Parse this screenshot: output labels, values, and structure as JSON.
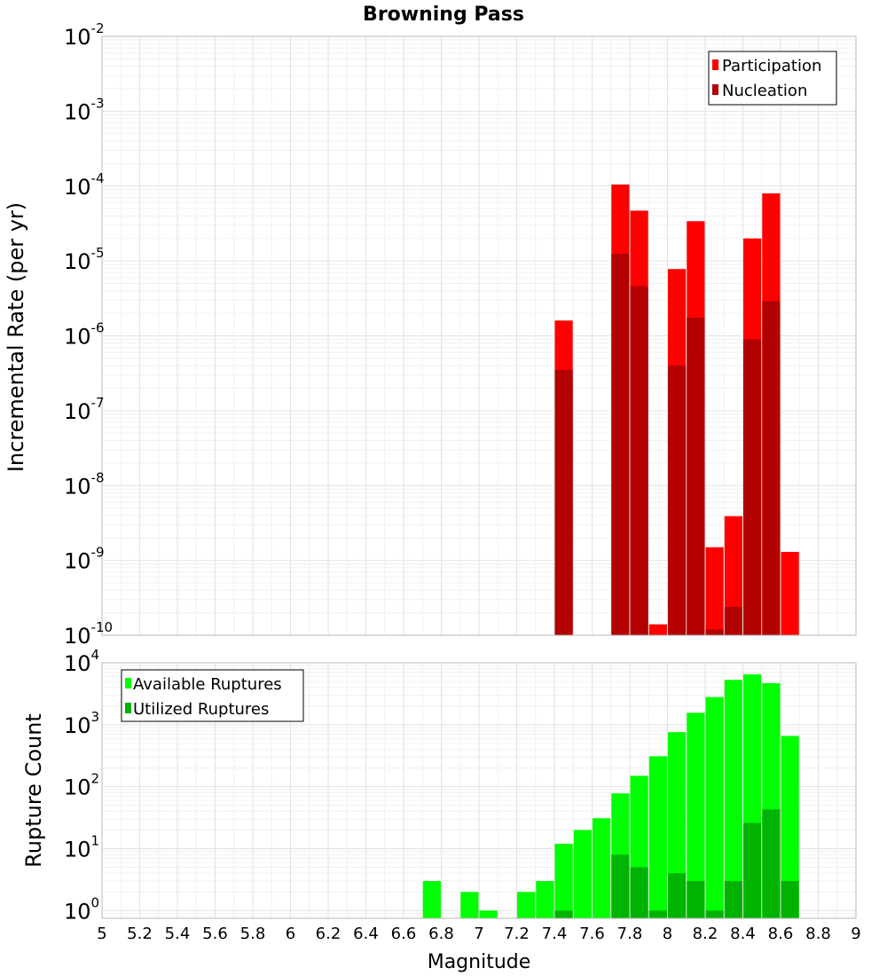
{
  "chart_data": [
    {
      "type": "bar",
      "title": "Browning Pass",
      "ylabel": "Incremental Rate (per yr)",
      "xlabel": "",
      "xlim": [
        5,
        9
      ],
      "ylim": [
        1e-10,
        0.01
      ],
      "yscale": "log",
      "grid": true,
      "legend_position": "top-right",
      "bar_width": 0.095,
      "series": [
        {
          "name": "Participation",
          "color": "#ff0000",
          "x": [
            7.45,
            7.75,
            7.85,
            7.95,
            8.05,
            8.15,
            8.25,
            8.35,
            8.45,
            8.55,
            8.65
          ],
          "values": [
            1.6e-06,
            0.000105,
            4.7e-05,
            1.4e-10,
            7.8e-06,
            3.4e-05,
            1.5e-09,
            3.9e-09,
            2e-05,
            8e-05,
            1.3e-09
          ]
        },
        {
          "name": "Nucleation",
          "color": "#b30000",
          "x": [
            7.45,
            7.75,
            7.85,
            8.05,
            8.15,
            8.25,
            8.35,
            8.45,
            8.55
          ],
          "values": [
            3.5e-07,
            1.25e-05,
            4.6e-06,
            4e-07,
            1.75e-06,
            1.2e-10,
            2.4e-10,
            9e-07,
            2.9e-06
          ]
        }
      ],
      "yticks": [
        {
          "base": "10",
          "exp": "-2"
        },
        {
          "base": "10",
          "exp": "-3"
        },
        {
          "base": "10",
          "exp": "-4"
        },
        {
          "base": "10",
          "exp": "-5"
        },
        {
          "base": "10",
          "exp": "-6"
        },
        {
          "base": "10",
          "exp": "-7"
        },
        {
          "base": "10",
          "exp": "-8"
        },
        {
          "base": "10",
          "exp": "-9"
        },
        {
          "base": "10",
          "exp": "-10"
        }
      ]
    },
    {
      "type": "bar",
      "title": "",
      "ylabel": "Rupture Count",
      "xlabel": "Magnitude",
      "xlim": [
        5,
        9
      ],
      "ylim": [
        0.75,
        10000
      ],
      "yscale": "log",
      "grid": true,
      "legend_position": "top-left",
      "bar_width": 0.095,
      "series": [
        {
          "name": "Available Ruptures",
          "color": "#00ff00",
          "x": [
            6.75,
            6.95,
            7.05,
            7.25,
            7.35,
            7.45,
            7.55,
            7.65,
            7.75,
            7.85,
            7.95,
            8.05,
            8.15,
            8.25,
            8.35,
            8.45,
            8.55,
            8.65
          ],
          "values": [
            3,
            2,
            1,
            2,
            3,
            12,
            20,
            31,
            78,
            150,
            310,
            760,
            1560,
            2800,
            5300,
            6500,
            4700,
            660
          ]
        },
        {
          "name": "Utilized Ruptures",
          "color": "#00b300",
          "x": [
            7.45,
            7.75,
            7.85,
            7.95,
            8.05,
            8.15,
            8.25,
            8.35,
            8.45,
            8.55,
            8.65
          ],
          "values": [
            1,
            8,
            5,
            1,
            4,
            3,
            1,
            3,
            26,
            43,
            3
          ]
        }
      ],
      "yticks": [
        {
          "base": "10",
          "exp": "4"
        },
        {
          "base": "10",
          "exp": "3"
        },
        {
          "base": "10",
          "exp": "2"
        },
        {
          "base": "10",
          "exp": "1"
        },
        {
          "base": "10",
          "exp": "0"
        }
      ],
      "xticks": [
        "5",
        "5.2",
        "5.4",
        "5.6",
        "5.8",
        "6",
        "6.2",
        "6.4",
        "6.6",
        "6.8",
        "7",
        "7.2",
        "7.4",
        "7.6",
        "7.8",
        "8",
        "8.2",
        "8.4",
        "8.6",
        "8.8",
        "9"
      ]
    }
  ]
}
